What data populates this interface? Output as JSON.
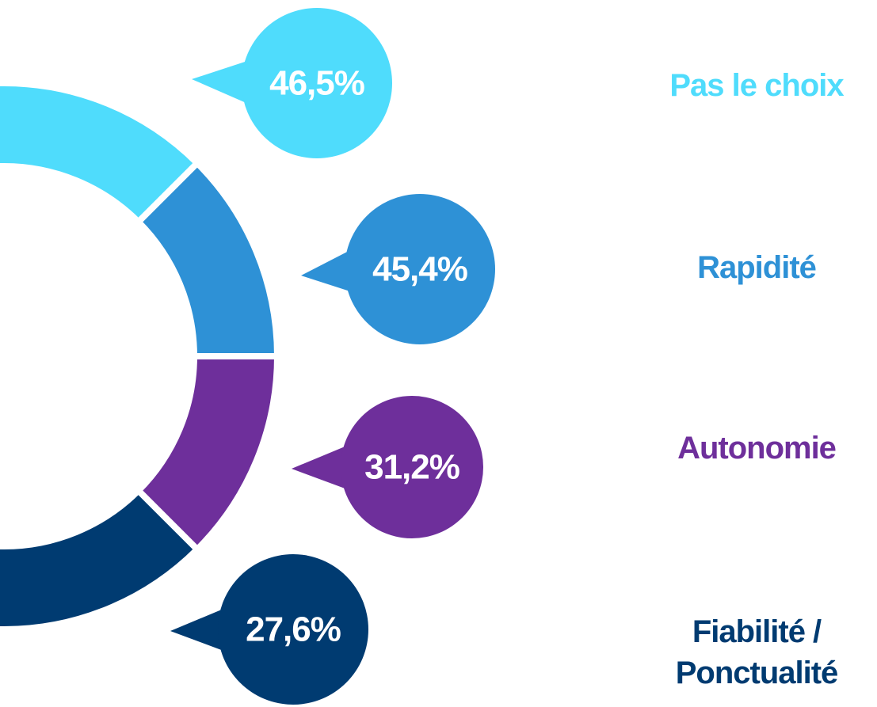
{
  "chart_data": {
    "type": "donut-bubbles",
    "categories": [
      "Pas le choix",
      "Rapidité",
      "Autonomie",
      "Fiabilité / Ponctualité"
    ],
    "values": [
      46.5,
      45.4,
      31.2,
      27.6
    ],
    "value_labels": [
      "46,5%",
      "45,4%",
      "31,2%",
      "27,6%"
    ],
    "colors": [
      "#4fdcfc",
      "#2e91d6",
      "#6e2f9b",
      "#003b71"
    ]
  }
}
